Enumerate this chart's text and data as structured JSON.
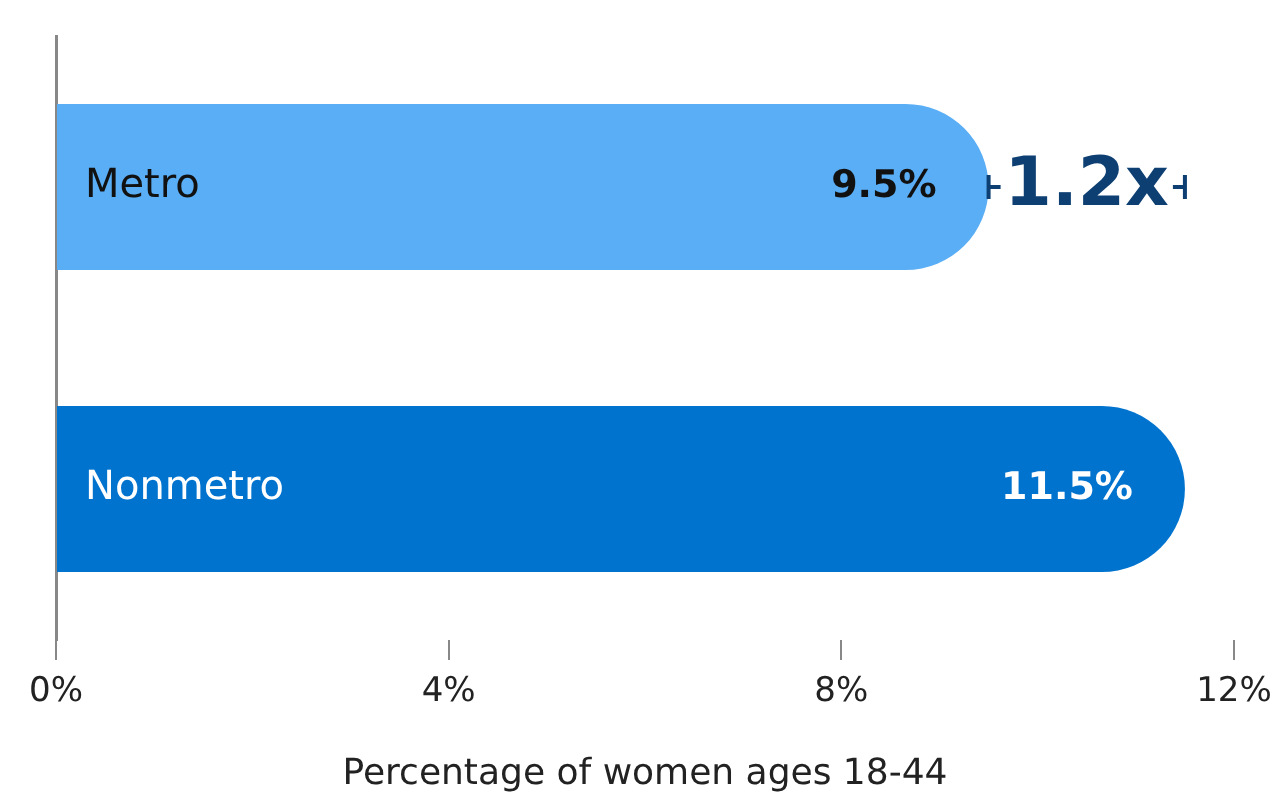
{
  "chart_data": {
    "type": "bar",
    "orientation": "horizontal",
    "xlabel": "Percentage of women ages 18-44",
    "categories": [
      "Metro",
      "Nonmetro"
    ],
    "values": [
      9.5,
      11.5
    ],
    "colors": [
      "#5aaef5",
      "#0073cf"
    ],
    "value_labels": [
      "9.5%",
      "11.5%"
    ],
    "xlim": [
      0,
      12
    ],
    "xticks": [
      {
        "value": 0,
        "label": "0%"
      },
      {
        "value": 4,
        "label": "4%"
      },
      {
        "value": 8,
        "label": "8%"
      },
      {
        "value": 12,
        "label": "12%"
      }
    ],
    "grid": false,
    "legend": false,
    "annotations": [
      "1.2x"
    ]
  }
}
